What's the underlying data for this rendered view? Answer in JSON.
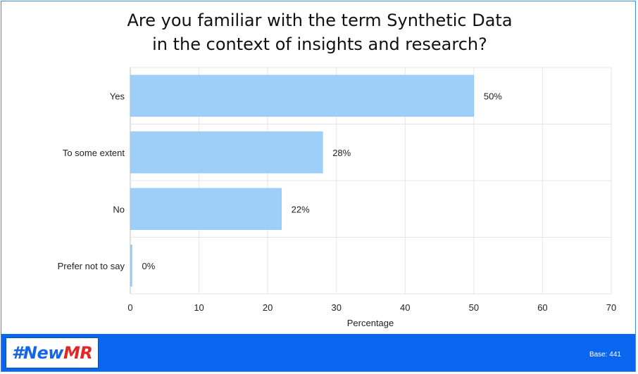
{
  "chart_data": {
    "type": "bar",
    "orientation": "horizontal",
    "title_lines": [
      "Are you familiar with the term Synthetic Data",
      "in the context of insights and research?"
    ],
    "categories": [
      "Yes",
      "To some extent",
      "No",
      "Prefer not to say"
    ],
    "values": [
      50,
      28,
      22,
      0
    ],
    "value_labels": [
      "50%",
      "28%",
      "22%",
      "0%"
    ],
    "xlabel": "Percentage",
    "xlim": [
      0,
      70
    ],
    "xticks": [
      0,
      10,
      20,
      30,
      40,
      50,
      60,
      70
    ],
    "grid": true,
    "bar_color": "#9ecff9",
    "bar_edge_color": "#86bdf2",
    "legend": "none"
  },
  "footer": {
    "logo_hash": "#",
    "logo_new": "New",
    "logo_mr": "MR",
    "base_label": "Base: 441",
    "background_color": "#0a66ee"
  }
}
